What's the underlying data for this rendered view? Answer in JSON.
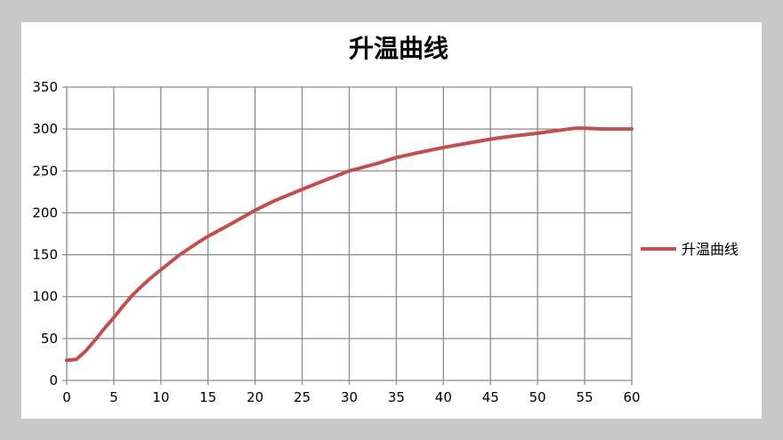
{
  "chart_data": {
    "type": "line",
    "title": "升温曲线",
    "xlabel": "",
    "ylabel": "",
    "xlim": [
      0,
      60
    ],
    "ylim": [
      0,
      350
    ],
    "xticks": [
      0,
      5,
      10,
      15,
      20,
      25,
      30,
      35,
      40,
      45,
      50,
      55,
      60
    ],
    "yticks": [
      0,
      50,
      100,
      150,
      200,
      250,
      300,
      350
    ],
    "grid": true,
    "legend": "right",
    "series": [
      {
        "name": "升温曲线",
        "color": "#c0504d",
        "x": [
          0,
          1,
          2,
          3,
          4,
          5,
          6,
          7,
          8,
          9,
          10,
          12,
          14,
          15,
          17,
          20,
          22,
          25,
          27,
          30,
          31,
          33,
          35,
          37,
          40,
          42,
          45,
          47,
          50,
          52,
          54,
          55,
          57,
          60
        ],
        "y": [
          24,
          25,
          35,
          48,
          62,
          75,
          89,
          102,
          113,
          123,
          132,
          150,
          165,
          172,
          184,
          203,
          214,
          228,
          237,
          250,
          253,
          259,
          266,
          271,
          278,
          282,
          288,
          291,
          295,
          298,
          301,
          301,
          300,
          300
        ]
      }
    ]
  }
}
